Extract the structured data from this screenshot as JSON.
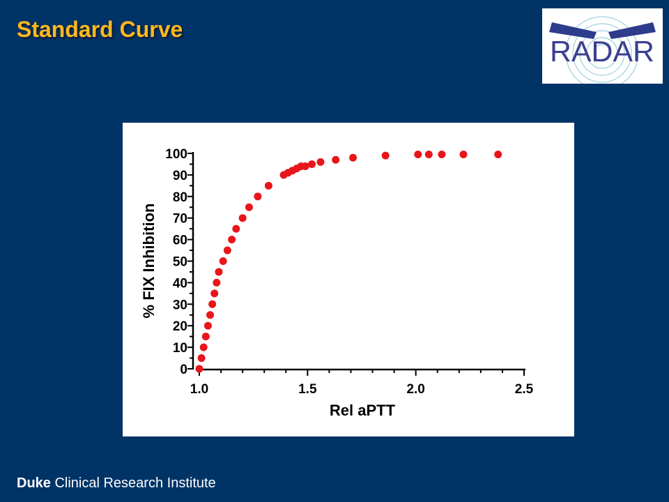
{
  "slide": {
    "title": "Standard Curve",
    "footer_brand": "Duke",
    "footer_rest": " Clinical Research Institute"
  },
  "logo": {
    "text": "RADAR",
    "icon": "radar-logo"
  },
  "colors": {
    "background": "#003366",
    "title": "#FFB81C",
    "points": "#E8151B",
    "axes": "#000000",
    "logo_text": "#3a3f8f"
  },
  "chart_data": {
    "type": "scatter",
    "title": "",
    "xlabel": "Rel aPTT",
    "ylabel": "% FIX Inhibition",
    "xlim": [
      1.0,
      2.5
    ],
    "ylim": [
      0,
      100
    ],
    "xticks": [
      "1.0",
      "1.5",
      "2.0",
      "2.5"
    ],
    "yticks": [
      "0",
      "10",
      "20",
      "30",
      "40",
      "50",
      "60",
      "70",
      "80",
      "90",
      "100"
    ],
    "grid": false,
    "legend": "none",
    "series": [
      {
        "x": [
          1.0,
          1.01,
          1.02,
          1.03,
          1.04,
          1.05,
          1.06,
          1.07,
          1.08,
          1.09,
          1.11,
          1.13,
          1.15,
          1.17,
          1.2,
          1.23,
          1.27,
          1.32,
          1.39,
          1.41,
          1.43,
          1.45,
          1.47,
          1.49,
          1.52,
          1.56,
          1.63,
          1.71,
          1.86,
          2.01,
          2.06,
          2.12,
          2.22,
          2.38
        ],
        "y": [
          0,
          5,
          10,
          15,
          20,
          25,
          30,
          35,
          40,
          45,
          50,
          55,
          60,
          65,
          70,
          75,
          80,
          85,
          90,
          91,
          92,
          93,
          94,
          94,
          95,
          96,
          97,
          98,
          99,
          99.5,
          99.5,
          99.5,
          99.5,
          99.5
        ]
      }
    ]
  }
}
